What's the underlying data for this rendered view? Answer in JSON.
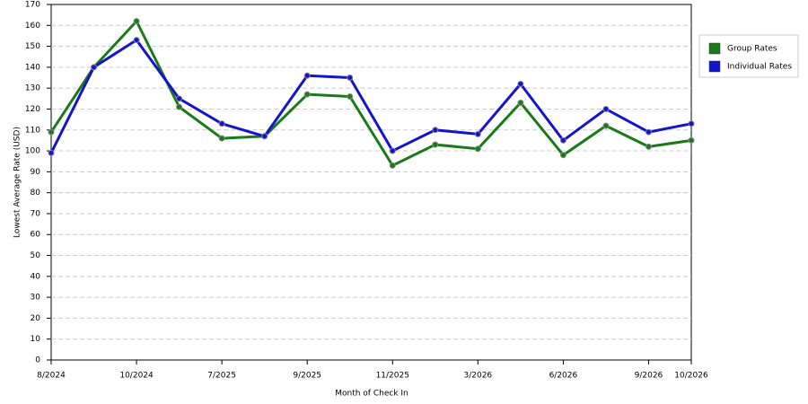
{
  "chart_data": {
    "type": "line",
    "x_label": "Month of Check In",
    "y_label": "Lowest Average Rate (USD)",
    "categories": [
      "8/2024",
      null,
      "10/2024",
      null,
      "7/2025",
      null,
      "9/2025",
      null,
      "11/2025",
      null,
      "3/2026",
      null,
      "6/2026",
      null,
      "9/2026",
      "10/2026"
    ],
    "series": [
      {
        "name": "Group Rates",
        "color": "#1a7a1a",
        "values": [
          109,
          140,
          162,
          121,
          106,
          107,
          127,
          126,
          93,
          103,
          101,
          123,
          98,
          112,
          102,
          105
        ]
      },
      {
        "name": "Individual Rates",
        "color": "#1414cc",
        "values": [
          99,
          140,
          153,
          125,
          113,
          107,
          136,
          135,
          100,
          110,
          108,
          132,
          105,
          120,
          109,
          113
        ]
      }
    ],
    "ylim": [
      0,
      170
    ],
    "yticks": [
      0,
      10,
      20,
      30,
      40,
      50,
      60,
      70,
      80,
      90,
      100,
      110,
      120,
      130,
      140,
      150,
      160,
      170
    ],
    "grid": true,
    "legend": "right"
  }
}
